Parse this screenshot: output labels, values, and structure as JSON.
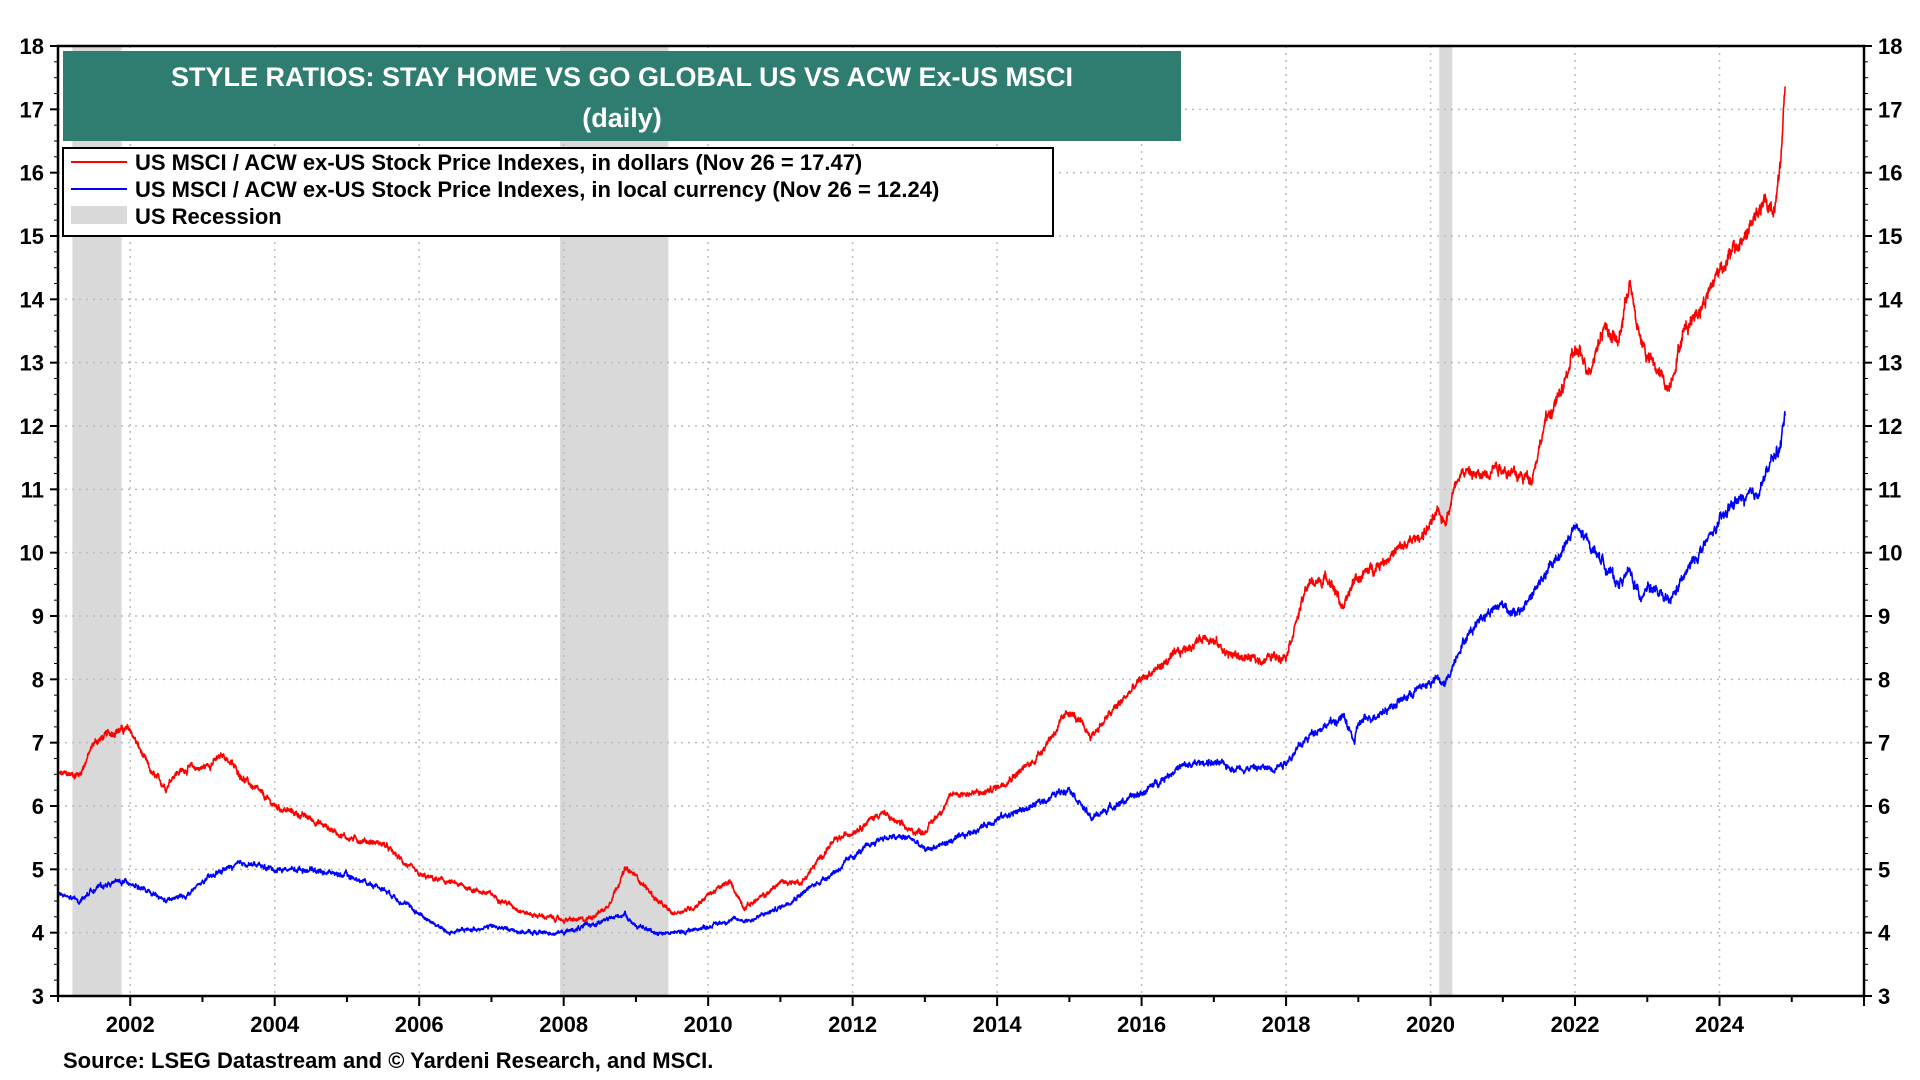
{
  "chart_data": {
    "type": "line",
    "title": "STYLE RATIOS: STAY HOME VS GO GLOBAL US VS ACW Ex-US MSCI",
    "subtitle": "(daily)",
    "xlabel": "",
    "ylabel": "",
    "xlim": [
      2001.0,
      2026.0
    ],
    "ylim": [
      3,
      18
    ],
    "y_ticks": [
      "3",
      "4",
      "5",
      "6",
      "7",
      "8",
      "9",
      "10",
      "11",
      "12",
      "13",
      "14",
      "15",
      "16",
      "17",
      "18"
    ],
    "x_ticks": [
      "2002",
      "2004",
      "2006",
      "2008",
      "2010",
      "2012",
      "2014",
      "2016",
      "2018",
      "2020",
      "2022",
      "2024"
    ],
    "grid": true,
    "legend_position": "top-left",
    "recessions": [
      {
        "start": 2001.2,
        "end": 2001.88
      },
      {
        "start": 2007.95,
        "end": 2009.45
      },
      {
        "start": 2020.12,
        "end": 2020.3
      }
    ],
    "series": [
      {
        "name": "US MSCI / ACW ex-US Stock Price Indexes, in dollars (Nov 26 = 17.47)",
        "color": "#ff0000",
        "x": [
          2001.0,
          2001.3,
          2001.5,
          2001.8,
          2002.0,
          2002.3,
          2002.5,
          2002.6,
          2002.8,
          2003.0,
          2003.3,
          2003.6,
          2004.0,
          2004.5,
          2005.0,
          2005.5,
          2006.0,
          2006.4,
          2007.0,
          2007.5,
          2008.0,
          2008.3,
          2008.6,
          2008.85,
          2009.0,
          2009.3,
          2009.5,
          2009.8,
          2010.0,
          2010.3,
          2010.5,
          2010.8,
          2011.0,
          2011.3,
          2011.7,
          2012.0,
          2012.4,
          2012.8,
          2013.0,
          2013.4,
          2013.8,
          2014.0,
          2014.5,
          2015.0,
          2015.3,
          2015.6,
          2016.0,
          2016.5,
          2016.9,
          2017.2,
          2017.6,
          2018.0,
          2018.3,
          2018.6,
          2018.8,
          2018.95,
          2019.0,
          2019.5,
          2019.9,
          2020.1,
          2020.2,
          2020.4,
          2020.7,
          2020.9,
          2021.2,
          2021.4,
          2021.6,
          2021.8,
          2022.0,
          2022.2,
          2022.4,
          2022.6,
          2022.75,
          2022.85,
          2023.0,
          2023.3,
          2023.5,
          2023.8,
          2024.0,
          2024.3,
          2024.6,
          2024.75,
          2024.85,
          2024.91
        ],
        "values": [
          6.5,
          6.5,
          7.0,
          7.2,
          7.2,
          6.5,
          6.3,
          6.5,
          6.6,
          6.6,
          6.8,
          6.4,
          6.0,
          5.8,
          5.5,
          5.4,
          4.9,
          4.8,
          4.6,
          4.3,
          4.2,
          4.2,
          4.4,
          5.0,
          4.9,
          4.5,
          4.3,
          4.4,
          4.6,
          4.8,
          4.4,
          4.6,
          4.8,
          4.8,
          5.4,
          5.6,
          5.9,
          5.6,
          5.6,
          6.2,
          6.2,
          6.3,
          6.7,
          7.5,
          7.1,
          7.5,
          8.0,
          8.4,
          8.7,
          8.4,
          8.3,
          8.4,
          9.5,
          9.6,
          9.1,
          9.6,
          9.6,
          10.0,
          10.3,
          10.6,
          10.5,
          11.3,
          11.2,
          11.4,
          11.2,
          11.2,
          12.1,
          12.5,
          13.2,
          12.9,
          13.6,
          13.3,
          14.3,
          13.6,
          13.1,
          12.6,
          13.5,
          14.0,
          14.5,
          14.9,
          15.5,
          15.4,
          16.2,
          17.47
        ]
      },
      {
        "name": "US MSCI / ACW ex-US Stock Price Indexes, in local currency (Nov 26 = 12.24)",
        "color": "#0000ff",
        "x": [
          2001.0,
          2001.3,
          2001.5,
          2001.8,
          2002.0,
          2002.3,
          2002.5,
          2002.8,
          2003.0,
          2003.3,
          2003.6,
          2004.0,
          2004.5,
          2005.0,
          2005.5,
          2006.0,
          2006.4,
          2007.0,
          2007.5,
          2008.0,
          2008.3,
          2008.6,
          2008.85,
          2009.0,
          2009.3,
          2009.6,
          2010.0,
          2010.3,
          2010.6,
          2011.0,
          2011.4,
          2011.8,
          2012.0,
          2012.4,
          2012.8,
          2013.0,
          2013.5,
          2014.0,
          2014.5,
          2015.0,
          2015.3,
          2015.6,
          2016.0,
          2016.5,
          2016.9,
          2017.3,
          2017.8,
          2018.0,
          2018.4,
          2018.8,
          2018.95,
          2019.0,
          2019.5,
          2019.9,
          2020.1,
          2020.2,
          2020.4,
          2020.7,
          2021.0,
          2021.2,
          2021.5,
          2021.8,
          2022.0,
          2022.3,
          2022.6,
          2022.75,
          2022.9,
          2023.0,
          2023.3,
          2023.6,
          2023.9,
          2024.2,
          2024.5,
          2024.75,
          2024.85,
          2024.91
        ],
        "values": [
          4.6,
          4.5,
          4.7,
          4.8,
          4.8,
          4.6,
          4.5,
          4.6,
          4.8,
          5.0,
          5.1,
          5.0,
          5.0,
          4.9,
          4.7,
          4.3,
          4.0,
          4.1,
          4.0,
          4.0,
          4.1,
          4.2,
          4.3,
          4.1,
          4.0,
          4.0,
          4.1,
          4.2,
          4.2,
          4.4,
          4.7,
          5.0,
          5.2,
          5.5,
          5.5,
          5.3,
          5.5,
          5.8,
          6.0,
          6.3,
          5.8,
          6.0,
          6.2,
          6.6,
          6.7,
          6.6,
          6.6,
          6.7,
          7.2,
          7.4,
          7.0,
          7.3,
          7.6,
          7.9,
          8.0,
          7.9,
          8.5,
          9.0,
          9.2,
          9.0,
          9.5,
          10.0,
          10.4,
          10.0,
          9.5,
          9.7,
          9.3,
          9.5,
          9.2,
          9.8,
          10.3,
          10.8,
          10.9,
          11.5,
          11.7,
          12.24
        ]
      }
    ],
    "legend": {
      "entries": [
        {
          "label": "US MSCI / ACW ex-US Stock Price Indexes, in dollars (Nov 26 = 17.47)",
          "color": "#ff0000",
          "kind": "line"
        },
        {
          "label": "US MSCI / ACW ex-US Stock Price Indexes, in local currency (Nov 26 = 12.24)",
          "color": "#0000ff",
          "kind": "line"
        },
        {
          "label": "US Recession",
          "color": "#d9d9d9",
          "kind": "box"
        }
      ]
    }
  },
  "colors": {
    "title_bg": "#2e7d70",
    "title_text": "#ffffff",
    "recession": "#d9d9d9",
    "grid": "#bbbbbb"
  },
  "source": "Source: LSEG Datastream and © Yardeni Research, and MSCI."
}
